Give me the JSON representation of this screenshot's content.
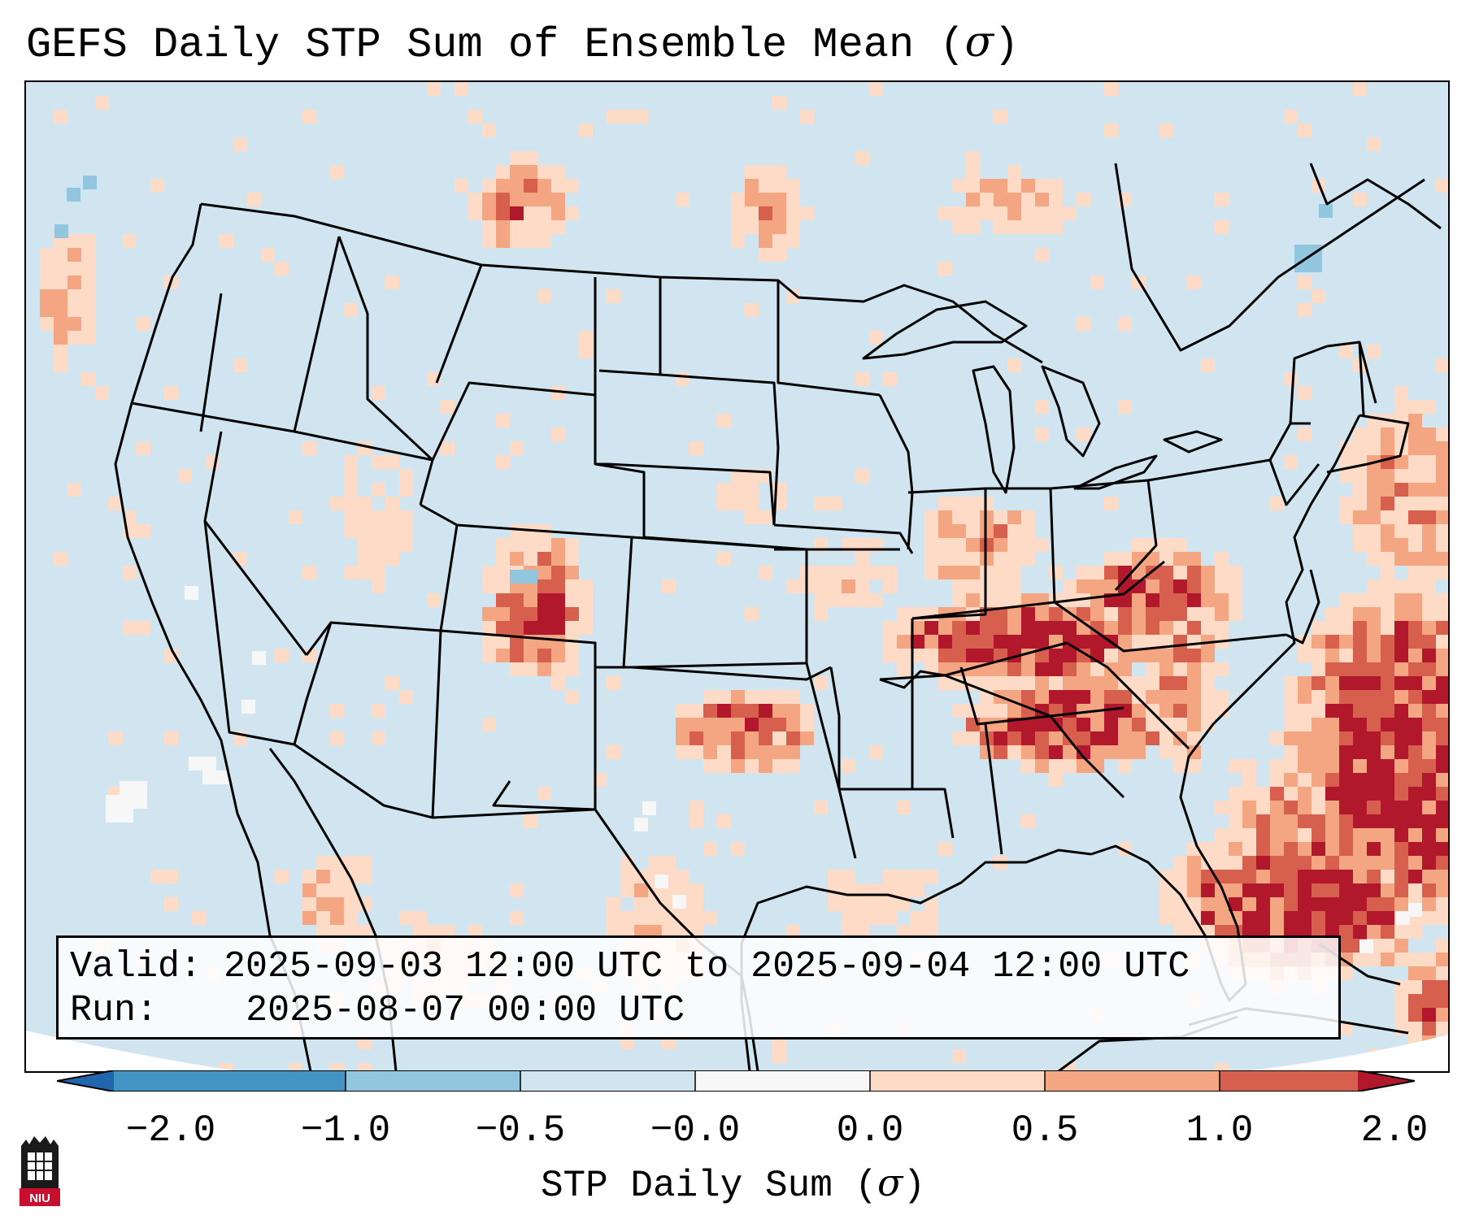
{
  "title": {
    "prefix": "GEFS Daily STP Sum of Ensemble Mean (",
    "symbol": "σ",
    "suffix": ")"
  },
  "info": {
    "valid_label": "Valid:",
    "valid_value": "2025-09-03 12:00 UTC to 2025-09-04 12:00 UTC",
    "run_label": "Run:",
    "run_value": "2025-08-07 00:00 UTC"
  },
  "colorbar": {
    "label_prefix": "STP Daily Sum (",
    "label_symbol": "σ",
    "label_suffix": ")",
    "ticks": [
      "−2.0",
      "−1.0",
      "−0.5",
      "−0.0",
      "0.0",
      "0.5",
      "1.0",
      "2.0"
    ],
    "colors": [
      "#2166ac",
      "#4393c3",
      "#92c5de",
      "#d1e5f0",
      "#f7f7f7",
      "#fddbc7",
      "#f4a582",
      "#d6604d",
      "#b2182b"
    ],
    "extend": "both"
  },
  "map": {
    "region": "Contiguous United States, southern Canada, northern Mexico, Gulf of Mexico, western Atlantic",
    "background_color": "#d1e5f0",
    "hotspots": [
      {
        "region": "Tennessee Valley / northern Alabama / Mississippi",
        "value_sigma": 2.0
      },
      {
        "region": "Western Atlantic east of Carolinas and Florida",
        "value_sigma": 2.0
      },
      {
        "region": "Ohio Valley / West Virginia / Virginia",
        "value_sigma": 1.0
      },
      {
        "region": "Southern Oklahoma / North Texas",
        "value_sigma": 1.5
      },
      {
        "region": "Colorado / New Mexico Front Range",
        "value_sigma": 1.0
      },
      {
        "region": "Southern Saskatchewan / North Dakota",
        "value_sigma": 1.0
      }
    ]
  },
  "logo": {
    "text": "NIU"
  }
}
